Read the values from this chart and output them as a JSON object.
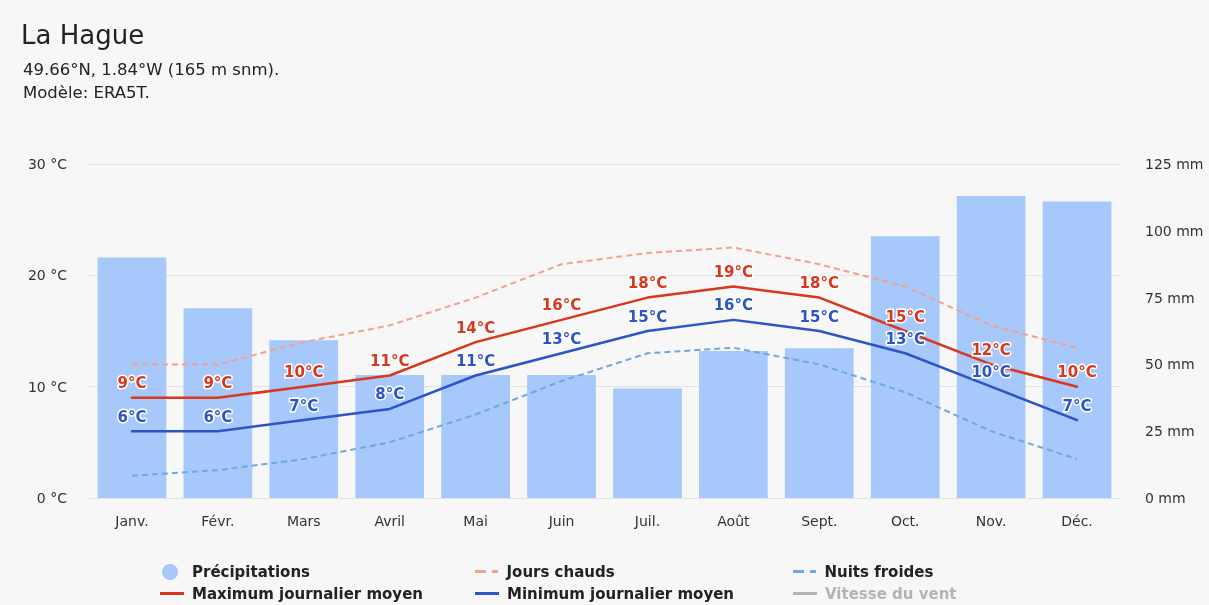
{
  "chart_data": {
    "type": "line",
    "title": "La Hague",
    "subtitle": "49.66°N, 1.84°W (165 m snm).",
    "annotations": [
      "Modèle: ERA5T."
    ],
    "categories": [
      "Janv.",
      "Févr.",
      "Mars",
      "Avril",
      "Mai",
      "Juin",
      "Juil.",
      "Août",
      "Sept.",
      "Oct.",
      "Nov.",
      "Déc."
    ],
    "series": [
      {
        "name": "Précipitations",
        "type": "bar",
        "axis": "y2",
        "color": "#a6c8fa",
        "values": [
          90,
          71,
          59,
          46,
          46,
          46,
          41,
          55,
          56,
          98,
          113,
          111
        ]
      },
      {
        "name": "Jours chauds",
        "color": "#f4a08e",
        "line_style": "dashed",
        "values": [
          12,
          12,
          14,
          15.5,
          18,
          21,
          22,
          22.5,
          21,
          19,
          15.5,
          13.5
        ]
      },
      {
        "name": "Nuits froides",
        "color": "#6fa7e3",
        "line_style": "dashed",
        "values": [
          2,
          2.5,
          3.5,
          5,
          7.5,
          10.5,
          13,
          13.5,
          12,
          9.5,
          6,
          3.5
        ]
      },
      {
        "name": "Maximum journalier moyen",
        "color": "#d8391e",
        "values": [
          9,
          9,
          10,
          11,
          14,
          16,
          18,
          19,
          18,
          15,
          12,
          10
        ],
        "value_labels": [
          "9°C",
          "9°C",
          "10°C",
          "11°C",
          "14°C",
          "16°C",
          "18°C",
          "19°C",
          "18°C",
          "15°C",
          "12°C",
          "10°C"
        ]
      },
      {
        "name": "Minimum journalier moyen",
        "color": "#2d55c8",
        "values": [
          6,
          6,
          7,
          8,
          11,
          13,
          15,
          16,
          15,
          13,
          10,
          7
        ],
        "value_labels": [
          "6°C",
          "6°C",
          "7°C",
          "8°C",
          "11°C",
          "13°C",
          "15°C",
          "16°C",
          "15°C",
          "13°C",
          "10°C",
          "7°C"
        ]
      },
      {
        "name": "Vitesse du vent",
        "color": "#b4b4b4",
        "values": [
          null,
          null,
          null,
          null,
          null,
          null,
          null,
          null,
          null,
          null,
          null,
          null
        ]
      }
    ],
    "ylim": [
      0,
      30
    ],
    "yticks": [
      {
        "value": 0,
        "label": "0 °C"
      },
      {
        "value": 10,
        "label": "10 °C"
      },
      {
        "value": 20,
        "label": "20 °C"
      },
      {
        "value": 30,
        "label": "30 °C"
      }
    ],
    "y2lim": [
      0,
      125
    ],
    "y2ticks": [
      {
        "value": 0,
        "label": "0 mm"
      },
      {
        "value": 25,
        "label": "25 mm"
      },
      {
        "value": 50,
        "label": "50 mm"
      },
      {
        "value": 75,
        "label": "75 mm"
      },
      {
        "value": 100,
        "label": "100 mm"
      },
      {
        "value": 125,
        "label": "125 mm"
      }
    ],
    "grid": "y",
    "legend": "bottom",
    "marker": "none",
    "line_style": "solid"
  }
}
